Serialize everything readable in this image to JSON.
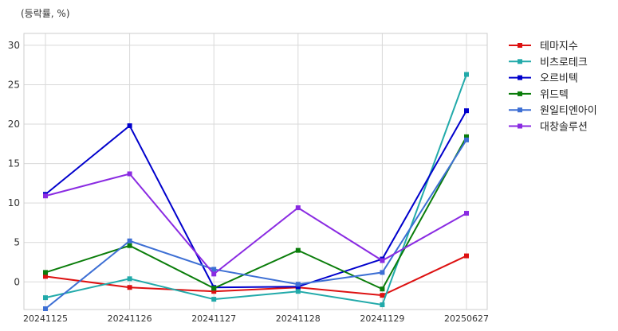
{
  "unit_label": "(등락률, %)",
  "chart_data": {
    "type": "line",
    "categories": [
      "20241125",
      "20241126",
      "20241127",
      "20241128",
      "20241129",
      "20250627"
    ],
    "ylim": [
      -3.5,
      31.5
    ],
    "yticks": [
      0,
      5,
      10,
      15,
      20,
      25,
      30
    ],
    "grid": true,
    "legend_position": "right-outside",
    "series": [
      {
        "name": "테마지수",
        "color": "#dd1111",
        "values": [
          0.7,
          -0.7,
          -1.2,
          -0.7,
          -1.7,
          3.3
        ]
      },
      {
        "name": "비츠로테크",
        "color": "#22aaaa",
        "values": [
          -2.0,
          0.4,
          -2.2,
          -1.2,
          -2.9,
          26.3
        ]
      },
      {
        "name": "오르비텍",
        "color": "#0000cc",
        "values": [
          11.1,
          19.8,
          -0.7,
          -0.6,
          2.9,
          21.7
        ]
      },
      {
        "name": "위드텍",
        "color": "#0a7d0a",
        "values": [
          1.2,
          4.6,
          -0.8,
          4.0,
          -0.9,
          18.4
        ]
      },
      {
        "name": "원일티엔아이",
        "color": "#3d6fd4",
        "values": [
          -3.4,
          5.2,
          1.6,
          -0.3,
          1.2,
          18.0
        ]
      },
      {
        "name": "대창솔루션",
        "color": "#8a2be2",
        "values": [
          10.9,
          13.7,
          1.0,
          9.4,
          2.7,
          8.7
        ]
      }
    ]
  }
}
